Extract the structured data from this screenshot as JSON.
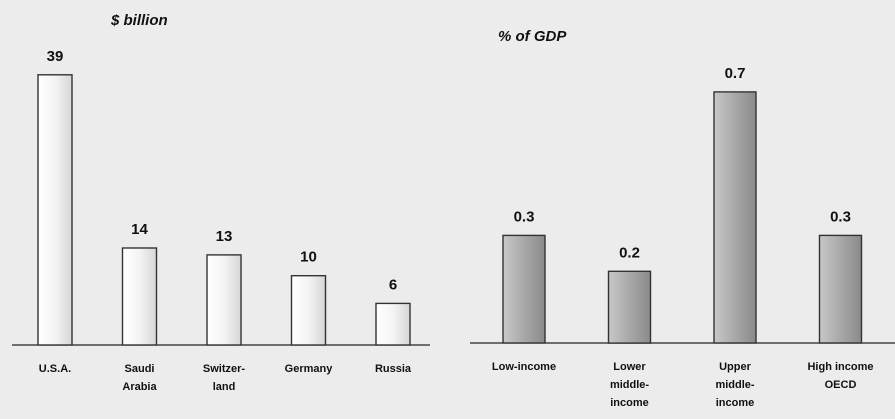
{
  "chart_data": [
    {
      "type": "bar",
      "title": "",
      "unit_label": "$ billion",
      "categories": [
        "U.S.A.",
        "Saudi Arabia",
        "Switzer-land",
        "Germany",
        "Russia"
      ],
      "category_lines": [
        [
          "U.S.A."
        ],
        [
          "Saudi",
          "Arabia"
        ],
        [
          "Switzer-",
          "land"
        ],
        [
          "Germany"
        ],
        [
          "Russia"
        ]
      ],
      "values": [
        39,
        14,
        13,
        10,
        6
      ],
      "value_labels": [
        "39",
        "14",
        "13",
        "10",
        "6"
      ],
      "ylim": [
        0,
        42
      ],
      "grid": false,
      "bar_color": "#f6f6f6"
    },
    {
      "type": "bar",
      "title": "",
      "unit_label": "% of GDP",
      "categories": [
        "Low-income",
        "Lower middle-income",
        "Upper middle-income",
        "High income OECD"
      ],
      "category_lines": [
        [
          "Low-income"
        ],
        [
          "Lower",
          "middle-",
          "income"
        ],
        [
          "Upper",
          "middle-",
          "income"
        ],
        [
          "High income",
          "OECD"
        ]
      ],
      "values": [
        0.3,
        0.2,
        0.7,
        0.3
      ],
      "value_labels": [
        "0.3",
        "0.2",
        "0.7",
        "0.3"
      ],
      "ylim": [
        0,
        0.8
      ],
      "grid": false,
      "bar_color": "#a8a8a8"
    }
  ]
}
